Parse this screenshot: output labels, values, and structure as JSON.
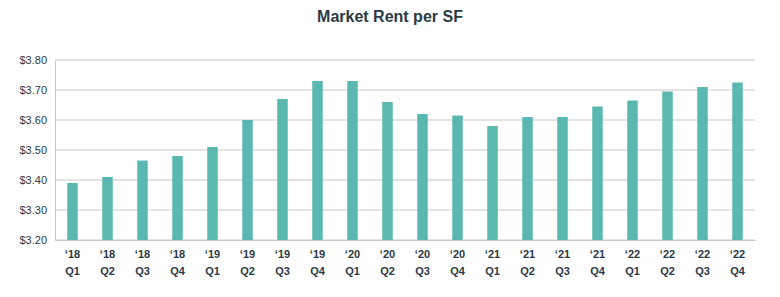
{
  "chart_data": {
    "type": "bar",
    "title": "Market Rent per SF",
    "categories": [
      "‘18\nQ1",
      "‘18\nQ2",
      "‘18\nQ3",
      "‘18\nQ4",
      "‘19\nQ1",
      "‘19\nQ2",
      "‘19\nQ3",
      "‘19\nQ4",
      "‘20\nQ1",
      "‘20\nQ2",
      "‘20\nQ3",
      "‘20\nQ4",
      "‘21\nQ1",
      "‘21\nQ2",
      "‘21\nQ3",
      "‘21\nQ4",
      "‘22\nQ1",
      "‘22\nQ2",
      "‘22\nQ3",
      "‘22\nQ4"
    ],
    "values": [
      3.39,
      3.41,
      3.465,
      3.48,
      3.51,
      3.6,
      3.67,
      3.73,
      3.73,
      3.66,
      3.62,
      3.615,
      3.58,
      3.61,
      3.61,
      3.645,
      3.665,
      3.695,
      3.71,
      3.725
    ],
    "color": "#5bb8b1",
    "ylim": [
      3.2,
      3.8
    ],
    "yticks": [
      {
        "value": 3.2,
        "label": "$3.20"
      },
      {
        "value": 3.3,
        "label": "$3.30"
      },
      {
        "value": 3.4,
        "label": "$3.40"
      },
      {
        "value": 3.5,
        "label": "$3.50"
      },
      {
        "value": 3.6,
        "label": "$3.60"
      },
      {
        "value": 3.7,
        "label": "$3.70"
      },
      {
        "value": 3.8,
        "label": "$3.80"
      }
    ],
    "grid": true
  }
}
